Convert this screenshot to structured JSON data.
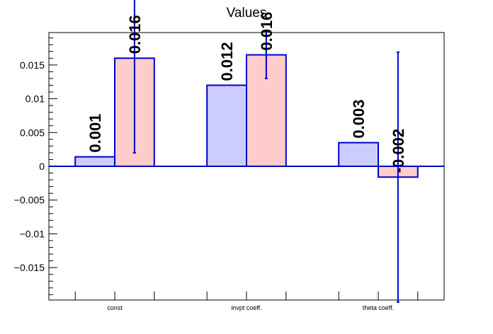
{
  "chart_data": {
    "type": "bar",
    "title": "Values",
    "xlabel": "",
    "ylabel": "",
    "categories": [
      "const",
      "invpt coeff.",
      "theta coeff."
    ],
    "ylim": [
      -0.0198,
      0.0198
    ],
    "yticks": [
      -0.015,
      -0.01,
      -0.005,
      0,
      0.005,
      0.01,
      0.015
    ],
    "ytick_labels": [
      "−0.015",
      "−0.01",
      "−0.005",
      "0",
      "0.005",
      "0.01",
      "0.015"
    ],
    "grid": false,
    "legend": "none",
    "series": [
      {
        "values": [
          0.0014,
          0.012,
          0.0035
        ],
        "labels": [
          "0.001",
          "0.012",
          "0.003"
        ],
        "errors": [
          null,
          null,
          null
        ],
        "fill": "#ccccff",
        "stroke": "#0000cc"
      },
      {
        "values": [
          0.016,
          0.0165,
          -0.0016
        ],
        "labels": [
          "0.016",
          "0.016",
          "-0.002"
        ],
        "errors": [
          0.014,
          0.0035,
          0.0185
        ],
        "fill": "#ffcccc",
        "stroke": "#0000cc"
      }
    ]
  }
}
